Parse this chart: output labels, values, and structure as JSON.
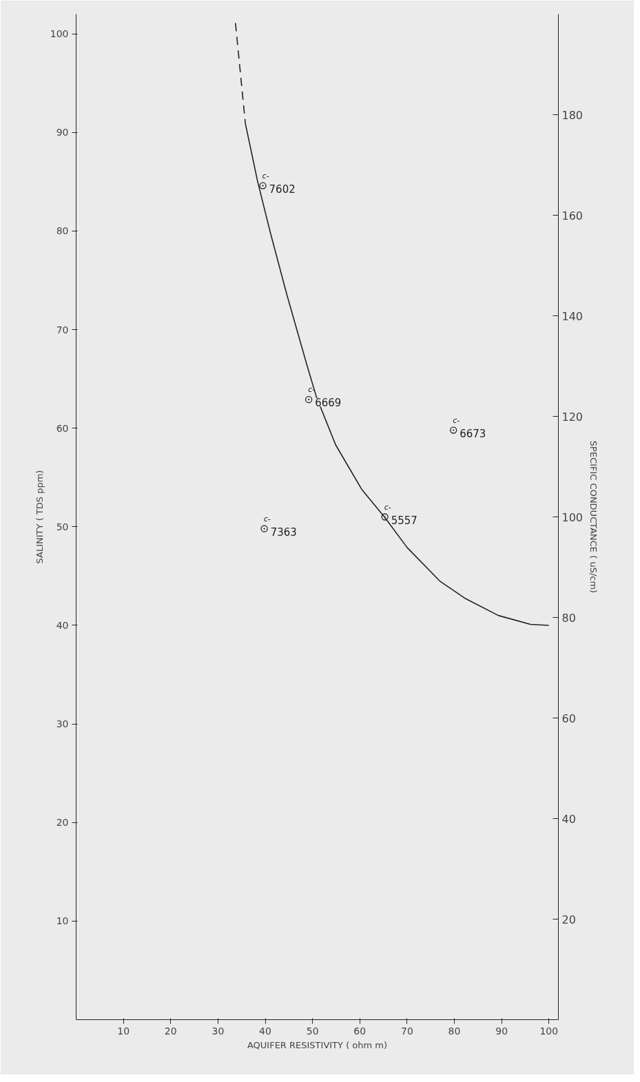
{
  "chart_data": {
    "type": "scatter",
    "xlabel": "AQUIFER RESISTIVITY ( ohm m)",
    "ylabel": "SALINITY ( TDS ppm)",
    "y2label": "SPECIFIC CONDUCTANCE ( uS/cm)",
    "xlim": [
      0,
      102
    ],
    "ylim": [
      0,
      102
    ],
    "y2lim": [
      0,
      200
    ],
    "xticks": [
      10,
      20,
      30,
      40,
      50,
      60,
      70,
      80,
      90,
      100
    ],
    "yticks": [
      10,
      20,
      30,
      40,
      50,
      60,
      70,
      80,
      90,
      100
    ],
    "y2ticks": [
      20,
      40,
      60,
      80,
      100,
      120,
      140,
      160,
      180
    ],
    "grid": false,
    "series": [
      {
        "marker": "circle",
        "color": "#222222",
        "x": [
          39.5,
          49.2,
          79.8,
          39.8,
          65.3
        ],
        "values": [
          84.6,
          62.9,
          59.8,
          49.8,
          51.0
        ]
      },
      {
        "type": "line",
        "line_style": "dashed",
        "color": "#222222",
        "x": [
          33.7,
          35.8
        ],
        "values": [
          101.1,
          90.9
        ]
      },
      {
        "type": "line",
        "line_style": "solid",
        "color": "#222222",
        "x": [
          35.8,
          38.4,
          41.1,
          44.6,
          48.7,
          50.8,
          54.9,
          60.4,
          65.2,
          70.0,
          76.9,
          82.4,
          89.3,
          96.1,
          100
        ],
        "values": [
          90.9,
          85.0,
          79.8,
          73.5,
          66.6,
          63.2,
          58.3,
          53.8,
          51.0,
          47.9,
          44.5,
          42.7,
          41.0,
          40.1,
          40.0
        ]
      }
    ],
    "annotations": [
      {
        "text": "7602",
        "x": 39.5,
        "y": 84.6
      },
      {
        "text": "6669",
        "x": 49.2,
        "y": 62.9
      },
      {
        "text": "6673",
        "x": 79.8,
        "y": 59.8
      },
      {
        "text": "7363",
        "x": 39.8,
        "y": 49.8
      },
      {
        "text": "5557",
        "x": 65.3,
        "y": 51.0
      },
      {
        "text": "c-",
        "x": 39.5,
        "y": 84.6
      },
      {
        "text": "c-",
        "x": 49.2,
        "y": 62.9
      },
      {
        "text": "c-",
        "x": 79.8,
        "y": 59.8
      },
      {
        "text": "c-",
        "x": 39.8,
        "y": 49.8
      },
      {
        "text": "c-",
        "x": 65.3,
        "y": 51.0
      }
    ]
  }
}
